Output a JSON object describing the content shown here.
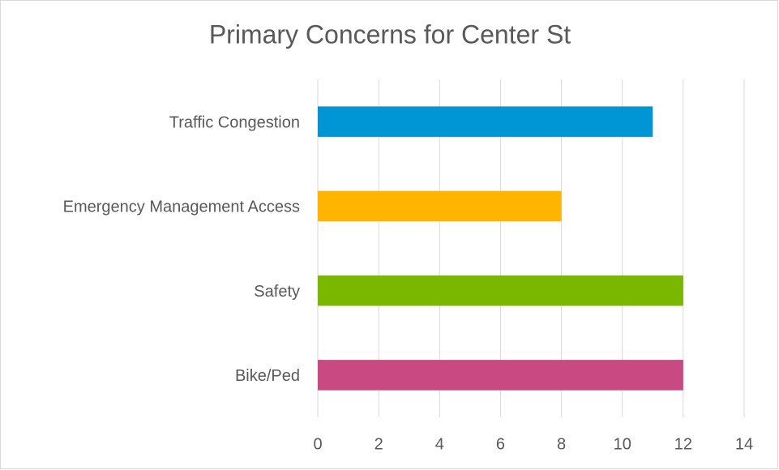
{
  "chart_data": {
    "type": "bar",
    "orientation": "horizontal",
    "title": "Primary Concerns for Center St",
    "categories": [
      "Traffic Congestion",
      "Emergency Management Access",
      "Safety",
      "Bike/Ped"
    ],
    "values": [
      11,
      8,
      12,
      12
    ],
    "colors": [
      "#0096d6",
      "#ffb400",
      "#7ab800",
      "#c94a82"
    ],
    "xlim": [
      0,
      14
    ],
    "xticks": [
      0,
      2,
      4,
      6,
      8,
      10,
      12,
      14
    ],
    "grid": true
  }
}
